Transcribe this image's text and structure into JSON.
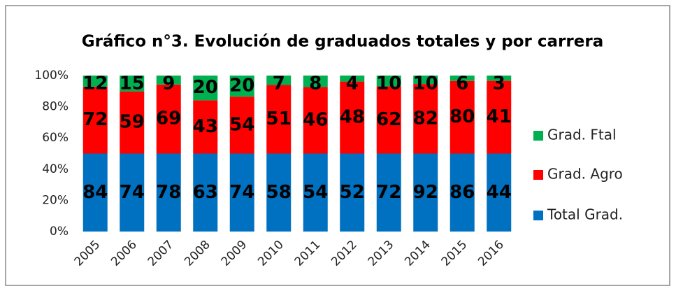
{
  "chart_data": {
    "type": "bar",
    "stacking": "percent",
    "title": "Gráfico n°3. Evolución de graduados totales y por carrera",
    "categories": [
      "2005",
      "2006",
      "2007",
      "2008",
      "2009",
      "2010",
      "2011",
      "2012",
      "2013",
      "2014",
      "2015",
      "2016"
    ],
    "series": [
      {
        "name": "Total Grad.",
        "color": "#0070c0",
        "values": [
          84,
          74,
          78,
          63,
          74,
          58,
          54,
          52,
          72,
          92,
          86,
          44
        ]
      },
      {
        "name": "Grad. Agro",
        "color": "#ff0000",
        "values": [
          72,
          59,
          69,
          43,
          54,
          51,
          46,
          48,
          62,
          82,
          80,
          41
        ]
      },
      {
        "name": "Grad. Ftal",
        "color": "#00b050",
        "values": [
          12,
          15,
          9,
          20,
          20,
          7,
          8,
          4,
          10,
          10,
          6,
          3
        ]
      }
    ],
    "ylim": [
      0,
      100
    ],
    "yticks": [
      {
        "value": 0,
        "label": "0%"
      },
      {
        "value": 20,
        "label": "20%"
      },
      {
        "value": 40,
        "label": "40%"
      },
      {
        "value": 60,
        "label": "60%"
      },
      {
        "value": 80,
        "label": "80%"
      },
      {
        "value": 100,
        "label": "100%"
      }
    ],
    "legend": "right"
  }
}
